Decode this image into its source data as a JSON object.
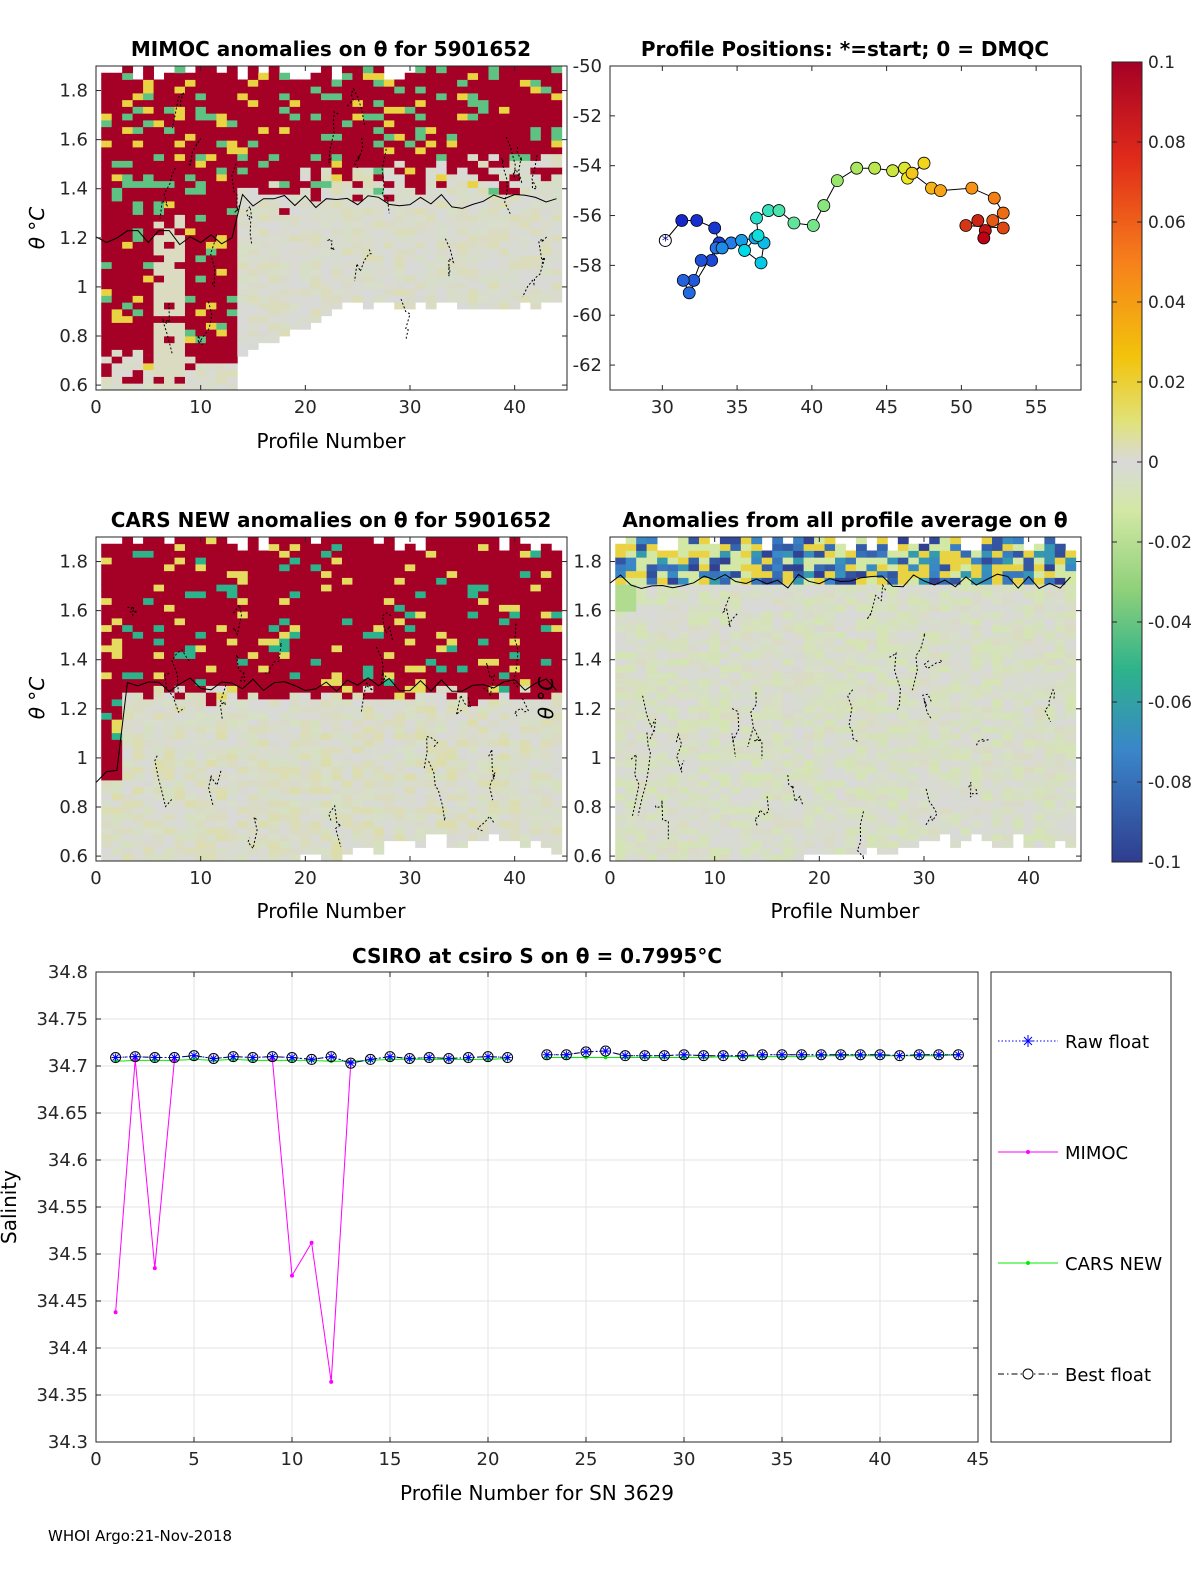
{
  "footer": "WHOI Argo:21-Nov-2018",
  "colorbar": {
    "ticks": [
      "0.1",
      "0.08",
      "0.06",
      "0.04",
      "0.02",
      "0",
      "-0.02",
      "-0.04",
      "-0.06",
      "-0.08",
      "-0.1"
    ],
    "values": [
      0.1,
      0.08,
      0.06,
      0.04,
      0.02,
      0,
      -0.02,
      -0.04,
      -0.06,
      -0.08,
      -0.1
    ]
  },
  "chart_data": [
    {
      "id": "mimoc",
      "type": "heatmap",
      "title": "MIMOC anomalies on θ  for 5901652",
      "xlabel": "Profile Number",
      "ylabel": "θ °C",
      "xlim": [
        0,
        45
      ],
      "ylim": [
        0.58,
        1.9
      ],
      "xticks": [
        "0",
        "10",
        "20",
        "30",
        "40"
      ],
      "xtick_values": [
        0,
        10,
        20,
        30,
        40
      ],
      "yticks": [
        "1.8",
        "1.6",
        "1.4",
        "1.2",
        "1",
        "0.8",
        "0.6"
      ],
      "ytick_values": [
        1.8,
        1.6,
        1.4,
        1.2,
        1,
        0.8,
        0.6
      ],
      "clim": [
        -0.1,
        0.1
      ]
    },
    {
      "id": "positions",
      "type": "scatter",
      "title": "Profile Positions: *=start; 0 = DMQC",
      "xlim": [
        26.5,
        58
      ],
      "ylim": [
        -63,
        -50
      ],
      "xticks": [
        "30",
        "35",
        "40",
        "45",
        "50",
        "55"
      ],
      "xtick_values": [
        30,
        35,
        40,
        45,
        50,
        55
      ],
      "yticks": [
        "-50",
        "-52",
        "-54",
        "-56",
        "-58",
        "-60",
        "-62"
      ],
      "ytick_values": [
        -50,
        -52,
        -54,
        -56,
        -58,
        -60,
        -62
      ],
      "track_lon": [
        30.2,
        31.3,
        32.3,
        33.5,
        33.8,
        33.3,
        32.6,
        32.1,
        31.4,
        31.8,
        33.6,
        34.6,
        34.0,
        35.3,
        36.2,
        36.8,
        36.6,
        35.5,
        36.4,
        36.3,
        37.1,
        37.8,
        38.8,
        40.1,
        40.8,
        41.7,
        43.0,
        44.2,
        45.4,
        46.2,
        46.4,
        47.5,
        46.7,
        48.0,
        48.6,
        50.7,
        52.2,
        52.8,
        52.1,
        52.8,
        50.3,
        51.1,
        51.6,
        51.5
      ],
      "track_lat": [
        -57.0,
        -56.2,
        -56.2,
        -56.5,
        -57.1,
        -57.8,
        -57.8,
        -58.6,
        -58.6,
        -59.1,
        -57.3,
        -57.1,
        -57.3,
        -57.0,
        -56.9,
        -57.1,
        -57.9,
        -57.4,
        -56.8,
        -56.1,
        -55.8,
        -55.8,
        -56.3,
        -56.4,
        -55.6,
        -54.6,
        -54.1,
        -54.1,
        -54.2,
        -54.1,
        -54.5,
        -53.9,
        -54.3,
        -54.9,
        -55.0,
        -54.9,
        -55.3,
        -55.9,
        -56.2,
        -56.5,
        -56.4,
        -56.2,
        -56.6,
        -56.9
      ]
    },
    {
      "id": "cars",
      "type": "heatmap",
      "title": "CARS NEW anomalies on θ for 5901652",
      "xlabel": "Profile Number",
      "ylabel": "θ °C",
      "xlim": [
        0,
        45
      ],
      "ylim": [
        0.58,
        1.9
      ],
      "xticks": [
        "0",
        "10",
        "20",
        "30",
        "40"
      ],
      "xtick_values": [
        0,
        10,
        20,
        30,
        40
      ],
      "yticks": [
        "1.8",
        "1.6",
        "1.4",
        "1.2",
        "1",
        "0.8",
        "0.6"
      ],
      "ytick_values": [
        1.8,
        1.6,
        1.4,
        1.2,
        1,
        0.8,
        0.6
      ],
      "clim": [
        -0.1,
        0.1
      ]
    },
    {
      "id": "avg",
      "type": "heatmap",
      "title": "Anomalies from all profile average on θ",
      "xlabel": "Profile Number",
      "ylabel": "θ °C",
      "xlim": [
        0,
        45
      ],
      "ylim": [
        0.58,
        1.9
      ],
      "xticks": [
        "0",
        "10",
        "20",
        "30",
        "40"
      ],
      "xtick_values": [
        0,
        10,
        20,
        30,
        40
      ],
      "yticks": [
        "1.8",
        "1.6",
        "1.4",
        "1.2",
        "1",
        "0.8",
        "0.6"
      ],
      "ytick_values": [
        1.8,
        1.6,
        1.4,
        1.2,
        1,
        0.8,
        0.6
      ],
      "clim": [
        -0.1,
        0.1
      ]
    },
    {
      "id": "salinity",
      "type": "line",
      "title": "CSIRO at csiro S on θ = 0.7995°C",
      "xlabel": "Profile Number for SN 3629",
      "ylabel": "Salinity",
      "xlim": [
        0,
        45
      ],
      "ylim": [
        34.3,
        34.8
      ],
      "xticks": [
        "0",
        "5",
        "10",
        "15",
        "20",
        "25",
        "30",
        "35",
        "40",
        "45"
      ],
      "xtick_values": [
        0,
        5,
        10,
        15,
        20,
        25,
        30,
        35,
        40,
        45
      ],
      "yticks": [
        "34.8",
        "34.75",
        "34.7",
        "34.65",
        "34.6",
        "34.55",
        "34.5",
        "34.45",
        "34.4",
        "34.35",
        "34.3"
      ],
      "ytick_values": [
        34.8,
        34.75,
        34.7,
        34.65,
        34.6,
        34.55,
        34.5,
        34.45,
        34.4,
        34.35,
        34.3
      ],
      "x": [
        1,
        2,
        3,
        4,
        5,
        6,
        7,
        8,
        9,
        10,
        11,
        12,
        13,
        14,
        15,
        16,
        17,
        18,
        19,
        20,
        21,
        22,
        23,
        24,
        25,
        26,
        27,
        28,
        29,
        30,
        31,
        32,
        33,
        34,
        35,
        36,
        37,
        38,
        39,
        40,
        41,
        42,
        43,
        44
      ],
      "series": [
        {
          "name": "Raw float",
          "color": "#0000ff",
          "style": "dotted-star",
          "values": [
            34.709,
            34.71,
            34.709,
            34.709,
            34.711,
            34.708,
            34.71,
            34.709,
            34.71,
            34.709,
            34.707,
            34.71,
            34.703,
            34.707,
            34.71,
            34.708,
            34.709,
            34.708,
            34.709,
            34.71,
            34.709,
            null,
            34.712,
            34.712,
            34.715,
            34.716,
            34.711,
            34.711,
            34.711,
            34.712,
            34.711,
            34.711,
            34.711,
            34.712,
            34.712,
            34.712,
            34.712,
            34.712,
            34.712,
            34.712,
            34.711,
            34.712,
            34.712,
            34.712
          ]
        },
        {
          "name": "MIMOC",
          "color": "#ff00ff",
          "style": "solid-dot",
          "values": [
            34.438,
            34.707,
            34.485,
            34.706,
            null,
            null,
            null,
            null,
            34.707,
            34.477,
            34.512,
            34.364,
            34.704,
            null,
            null,
            null,
            null,
            null,
            null,
            null,
            null,
            null,
            null,
            null,
            null,
            null,
            null,
            null,
            null,
            null,
            null,
            null,
            null,
            null,
            null,
            null,
            null,
            null,
            null,
            null,
            null,
            null,
            null,
            null
          ]
        },
        {
          "name": "CARS NEW",
          "color": "#00ee00",
          "style": "solid-dot",
          "values": [
            34.705,
            34.706,
            34.706,
            34.706,
            34.707,
            34.706,
            34.707,
            34.706,
            34.706,
            34.706,
            34.706,
            34.705,
            34.705,
            34.706,
            34.707,
            34.707,
            34.707,
            34.707,
            34.707,
            34.707,
            34.708,
            null,
            34.709,
            34.709,
            34.709,
            34.709,
            34.709,
            34.709,
            34.709,
            34.709,
            34.709,
            34.71,
            34.71,
            34.71,
            34.71,
            34.71,
            34.711,
            34.711,
            34.711,
            34.711,
            34.711,
            34.711,
            34.711,
            34.712
          ]
        },
        {
          "name": "Best float",
          "color": "#000000",
          "style": "dashdot-circle",
          "values": [
            34.709,
            34.71,
            34.709,
            34.709,
            34.711,
            34.708,
            34.71,
            34.709,
            34.71,
            34.709,
            34.707,
            34.71,
            34.703,
            34.707,
            34.71,
            34.708,
            34.709,
            34.708,
            34.709,
            34.71,
            34.709,
            null,
            34.712,
            34.712,
            34.715,
            34.716,
            34.711,
            34.711,
            34.711,
            34.712,
            34.711,
            34.711,
            34.711,
            34.712,
            34.712,
            34.712,
            34.712,
            34.712,
            34.712,
            34.712,
            34.711,
            34.712,
            34.712,
            34.712
          ]
        }
      ]
    }
  ]
}
